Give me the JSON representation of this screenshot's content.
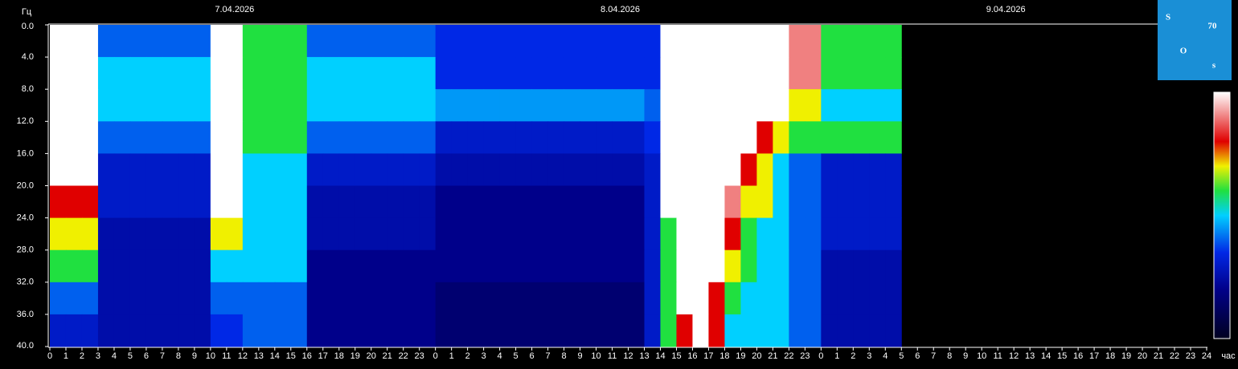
{
  "chart_data": {
    "type": "heatmap",
    "dates": [
      "7.04.2026",
      "8.04.2026",
      "9.04.2026"
    ],
    "y_label": "Гц",
    "x_label": "час",
    "logo": [
      "S",
      "70",
      "O",
      "s"
    ],
    "categories": [
      "0",
      "1",
      "2",
      "3",
      "4",
      "5",
      "6",
      "7",
      "8",
      "9",
      "10",
      "11",
      "12",
      "13",
      "14",
      "15",
      "16",
      "17",
      "18",
      "19",
      "20",
      "21",
      "22",
      "23",
      "0",
      "1",
      "2",
      "3",
      "4",
      "5",
      "6",
      "7",
      "8",
      "9",
      "10",
      "11",
      "12",
      "13",
      "14",
      "15",
      "16",
      "17",
      "18",
      "19",
      "20",
      "21",
      "22",
      "23",
      "0",
      "1",
      "2",
      "3",
      "4",
      "5",
      "6",
      "7",
      "8",
      "9",
      "10",
      "11",
      "12",
      "13",
      "14",
      "15",
      "16",
      "17",
      "18",
      "19",
      "20",
      "21",
      "22",
      "23",
      "24"
    ],
    "ylim": [
      0,
      40
    ],
    "yticks": [
      {
        "value": 0,
        "label": "0.0"
      },
      {
        "value": 4,
        "label": "4.0"
      },
      {
        "value": 8,
        "label": "8.0"
      },
      {
        "value": 12,
        "label": "12.0"
      },
      {
        "value": 16,
        "label": "16.0"
      },
      {
        "value": 20,
        "label": "20.0"
      },
      {
        "value": 24,
        "label": "24.0"
      },
      {
        "value": 28,
        "label": "28.0"
      },
      {
        "value": 32,
        "label": "32.0"
      },
      {
        "value": 36,
        "label": "36.0"
      },
      {
        "value": 40,
        "label": "40.0"
      }
    ],
    "zlim": [
      0,
      10
    ],
    "colorscale": [
      [
        0,
        "#000020"
      ],
      [
        2,
        "#00008a"
      ],
      [
        3.5,
        "#0028e6"
      ],
      [
        5,
        "#00d0ff"
      ],
      [
        6,
        "#20e040"
      ],
      [
        7,
        "#f0f000"
      ],
      [
        8,
        "#e00000"
      ],
      [
        10,
        "#ffffff"
      ]
    ],
    "z": [
      [
        10,
        10,
        10,
        4,
        4,
        4,
        4,
        4,
        4,
        4,
        10,
        10,
        6,
        6,
        6,
        6,
        4,
        4,
        4,
        4,
        4,
        4,
        4,
        4,
        3.5,
        3.5,
        3.5,
        3.5,
        3.5,
        3.5,
        3.5,
        3.5,
        3.5,
        3.5,
        3.5,
        3.5,
        3.5,
        3.5,
        10,
        10,
        10,
        10,
        10,
        10,
        10,
        10,
        9,
        9,
        6,
        6,
        6,
        6,
        6,
        null,
        null,
        null,
        null,
        null,
        null,
        null,
        null,
        null,
        null,
        null,
        null,
        null,
        null,
        null,
        null,
        null,
        null,
        null
      ],
      [
        10,
        10,
        10,
        5,
        5,
        5,
        5,
        5,
        5,
        5,
        10,
        10,
        6,
        6,
        6,
        6,
        5,
        5,
        5,
        5,
        5,
        5,
        5,
        5,
        3.5,
        3.5,
        3.5,
        3.5,
        3.5,
        3.5,
        3.5,
        3.5,
        3.5,
        3.5,
        3.5,
        3.5,
        3.5,
        3.5,
        10,
        10,
        10,
        10,
        10,
        10,
        10,
        10,
        9,
        9,
        6,
        6,
        6,
        6,
        6,
        null,
        null,
        null,
        null,
        null,
        null,
        null,
        null,
        null,
        null,
        null,
        null,
        null,
        null,
        null,
        null,
        null,
        null,
        null
      ],
      [
        10,
        10,
        10,
        5,
        5,
        5,
        5,
        5,
        5,
        5,
        10,
        10,
        6,
        6,
        6,
        6,
        5,
        5,
        5,
        5,
        5,
        5,
        5,
        5,
        4.5,
        4.5,
        4.5,
        4.5,
        4.5,
        4.5,
        4.5,
        4.5,
        4.5,
        4.5,
        4.5,
        4.5,
        4.5,
        4,
        10,
        10,
        10,
        10,
        10,
        10,
        10,
        10,
        7,
        7,
        5,
        5,
        5,
        5,
        5,
        null,
        null,
        null,
        null,
        null,
        null,
        null,
        null,
        null,
        null,
        null,
        null,
        null,
        null,
        null,
        null,
        null,
        null,
        null
      ],
      [
        10,
        10,
        10,
        4,
        4,
        4,
        4,
        4,
        4,
        4,
        10,
        10,
        6,
        6,
        6,
        6,
        4,
        4,
        4,
        4,
        4,
        4,
        4,
        4,
        3,
        3,
        3,
        3,
        3,
        3,
        3,
        3,
        3,
        3,
        3,
        3,
        3,
        3.5,
        10,
        10,
        10,
        10,
        10,
        10,
        8,
        7,
        6,
        6,
        6,
        6,
        6,
        6,
        6,
        null,
        null,
        null,
        null,
        null,
        null,
        null,
        null,
        null,
        null,
        null,
        null,
        null,
        null,
        null,
        null,
        null,
        null,
        null
      ],
      [
        10,
        10,
        10,
        3,
        3,
        3,
        3,
        3,
        3,
        3,
        10,
        10,
        5,
        5,
        5,
        5,
        3,
        3,
        3,
        3,
        3,
        3,
        3,
        3,
        2.5,
        2.5,
        2.5,
        2.5,
        2.5,
        2.5,
        2.5,
        2.5,
        2.5,
        2.5,
        2.5,
        2.5,
        2.5,
        3,
        10,
        10,
        10,
        10,
        10,
        8,
        7,
        5,
        4,
        4,
        3,
        3,
        3,
        3,
        3,
        null,
        null,
        null,
        null,
        null,
        null,
        null,
        null,
        null,
        null,
        null,
        null,
        null,
        null,
        null,
        null,
        null,
        null,
        null
      ],
      [
        8,
        8,
        8,
        3,
        3,
        3,
        3,
        3,
        3,
        3,
        10,
        10,
        5,
        5,
        5,
        5,
        2.5,
        2.5,
        2.5,
        2.5,
        2.5,
        2.5,
        2.5,
        2.5,
        2,
        2,
        2,
        2,
        2,
        2,
        2,
        2,
        2,
        2,
        2,
        2,
        2,
        3,
        10,
        10,
        10,
        10,
        9,
        7,
        7,
        5,
        4,
        4,
        3,
        3,
        3,
        3,
        3,
        null,
        null,
        null,
        null,
        null,
        null,
        null,
        null,
        null,
        null,
        null,
        null,
        null,
        null,
        null,
        null,
        null,
        null,
        null
      ],
      [
        7,
        7,
        7,
        2.5,
        2.5,
        2.5,
        2.5,
        2.5,
        2.5,
        2.5,
        7,
        7,
        5,
        5,
        5,
        5,
        2.5,
        2.5,
        2.5,
        2.5,
        2.5,
        2.5,
        2.5,
        2.5,
        2,
        2,
        2,
        2,
        2,
        2,
        2,
        2,
        2,
        2,
        2,
        2,
        2,
        3,
        6,
        10,
        10,
        10,
        8,
        6,
        5,
        5,
        4,
        4,
        3,
        3,
        3,
        3,
        3,
        null,
        null,
        null,
        null,
        null,
        null,
        null,
        null,
        null,
        null,
        null,
        null,
        null,
        null,
        null,
        null,
        null,
        null,
        null
      ],
      [
        6,
        6,
        6,
        2.5,
        2.5,
        2.5,
        2.5,
        2.5,
        2.5,
        2.5,
        5,
        5,
        5,
        5,
        5,
        5,
        2,
        2,
        2,
        2,
        2,
        2,
        2,
        2,
        2,
        2,
        2,
        2,
        2,
        2,
        2,
        2,
        2,
        2,
        2,
        2,
        2,
        3,
        6,
        10,
        10,
        10,
        7,
        6,
        5,
        5,
        4,
        4,
        2.5,
        2.5,
        2.5,
        2.5,
        2.5,
        null,
        null,
        null,
        null,
        null,
        null,
        null,
        null,
        null,
        null,
        null,
        null,
        null,
        null,
        null,
        null,
        null,
        null,
        null
      ],
      [
        4,
        4,
        4,
        2.5,
        2.5,
        2.5,
        2.5,
        2.5,
        2.5,
        2.5,
        4,
        4,
        4,
        4,
        4,
        4,
        2,
        2,
        2,
        2,
        2,
        2,
        2,
        2,
        1.5,
        1.5,
        1.5,
        1.5,
        1.5,
        1.5,
        1.5,
        1.5,
        1.5,
        1.5,
        1.5,
        1.5,
        1.5,
        3,
        6,
        10,
        10,
        8,
        6,
        5,
        5,
        5,
        4,
        4,
        2.5,
        2.5,
        2.5,
        2.5,
        2.5,
        null,
        null,
        null,
        null,
        null,
        null,
        null,
        null,
        null,
        null,
        null,
        null,
        null,
        null,
        null,
        null,
        null,
        null,
        null
      ],
      [
        3,
        3,
        3,
        2.5,
        2.5,
        2.5,
        2.5,
        2.5,
        2.5,
        2.5,
        3.5,
        3.5,
        4,
        4,
        4,
        4,
        2,
        2,
        2,
        2,
        2,
        2,
        2,
        2,
        1.5,
        1.5,
        1.5,
        1.5,
        1.5,
        1.5,
        1.5,
        1.5,
        1.5,
        1.5,
        1.5,
        1.5,
        1.5,
        3,
        6,
        8,
        10,
        8,
        5,
        5,
        5,
        5,
        4,
        4,
        2.5,
        2.5,
        2.5,
        2.5,
        2.5,
        null,
        null,
        null,
        null,
        null,
        null,
        null,
        null,
        null,
        null,
        null,
        null,
        null,
        null,
        null,
        null,
        null,
        null,
        null
      ]
    ]
  }
}
